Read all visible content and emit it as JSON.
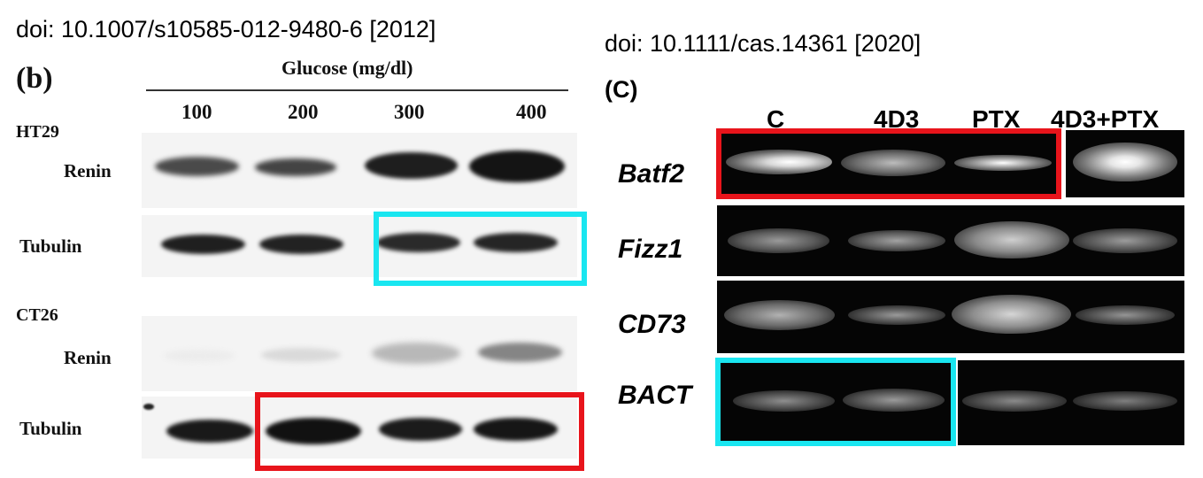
{
  "left_figure": {
    "doi": "doi: 10.1007/s10585-012-9480-6 [2012]",
    "panel_label": "(b)",
    "header_label": "Glucose (mg/dl)",
    "lanes": [
      "100",
      "200",
      "300",
      "400"
    ],
    "cell_lines": [
      {
        "name": "HT29",
        "rows": [
          {
            "label": "Renin"
          },
          {
            "label": "Tubulin"
          }
        ]
      },
      {
        "name": "CT26",
        "rows": [
          {
            "label": "Renin"
          },
          {
            "label": "Tubulin"
          }
        ]
      }
    ]
  },
  "right_figure": {
    "doi": "doi: 10.1111/cas.14361 [2020]",
    "panel_label": "(C)",
    "lanes": [
      "C",
      "4D3",
      "PTX",
      "4D3+PTX"
    ],
    "rows": [
      "Batf2",
      "Fizz1",
      "CD73",
      "BACT"
    ]
  },
  "highlight_colors": {
    "red": "#e8141b",
    "cyan": "#19e6f0"
  }
}
